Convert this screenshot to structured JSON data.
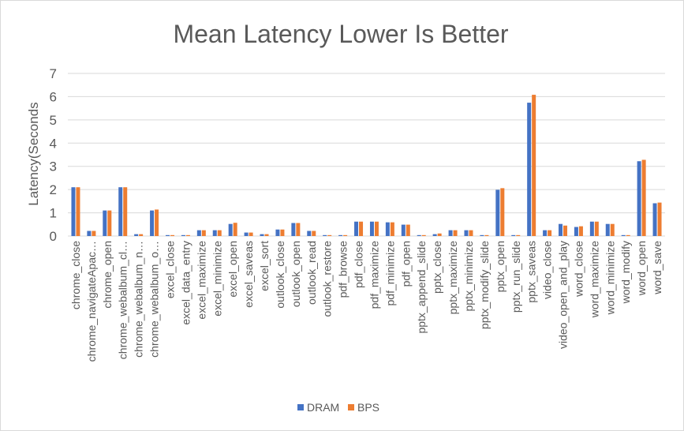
{
  "chart_data": {
    "type": "bar",
    "title": "Mean Latency Lower Is Better",
    "xlabel": "",
    "ylabel": "Latency(Seconds",
    "ylim": [
      0,
      7
    ],
    "yticks": [
      "0",
      "1",
      "2",
      "3",
      "4",
      "5",
      "6",
      "7"
    ],
    "grid": true,
    "legend_position": "bottom",
    "colors": {
      "DRAM": "#4472c4",
      "BPS": "#ed7d31"
    },
    "categories": [
      "chrome_close",
      "chrome_navigateApac…",
      "chrome_open",
      "chrome_webalbum_cl…",
      "chrome_webalbum_n…",
      "chrome_webalbum_o…",
      "excel_close",
      "excel_data_entry",
      "excel_maximize",
      "excel_minimize",
      "excel_open",
      "excel_saveas",
      "excel_sort",
      "outlook_close",
      "outlook_open",
      "outlook_read",
      "outlook_restore",
      "pdf_browse",
      "pdf_close",
      "pdf_maximize",
      "pdf_minimize",
      "pdf_open",
      "pptx_append_slide",
      "pptx_close",
      "pptx_maximize",
      "pptx_minimize",
      "pptx_modify_slide",
      "pptx_open",
      "pptx_run_slide",
      "pptx_saveas",
      "video_close",
      "video_open_and_play",
      "word_close",
      "word_maximize",
      "word_minimize",
      "word_modify",
      "word_open",
      "word_save"
    ],
    "series": [
      {
        "name": "DRAM",
        "values": [
          2.1,
          0.22,
          1.1,
          2.1,
          0.08,
          1.1,
          0.04,
          0.04,
          0.25,
          0.25,
          0.52,
          0.15,
          0.08,
          0.28,
          0.56,
          0.22,
          0.04,
          0.04,
          0.62,
          0.62,
          0.59,
          0.49,
          0.04,
          0.08,
          0.25,
          0.25,
          0.04,
          1.99,
          0.04,
          5.74,
          0.25,
          0.52,
          0.39,
          0.62,
          0.52,
          0.04,
          3.22,
          1.41
        ]
      },
      {
        "name": "BPS",
        "values": [
          2.1,
          0.22,
          1.1,
          2.1,
          0.08,
          1.14,
          0.04,
          0.04,
          0.25,
          0.25,
          0.57,
          0.15,
          0.08,
          0.28,
          0.56,
          0.22,
          0.04,
          0.04,
          0.62,
          0.62,
          0.59,
          0.49,
          0.04,
          0.11,
          0.25,
          0.25,
          0.04,
          2.06,
          0.04,
          6.08,
          0.25,
          0.45,
          0.42,
          0.62,
          0.52,
          0.04,
          3.28,
          1.44
        ]
      }
    ]
  }
}
